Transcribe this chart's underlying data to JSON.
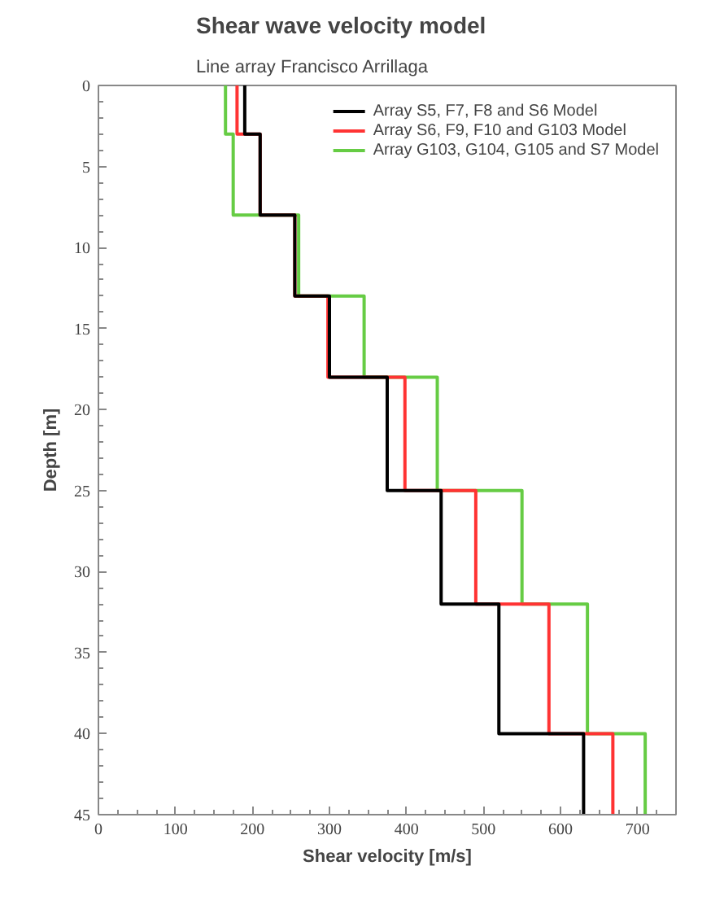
{
  "chart_data": {
    "type": "line",
    "title": "Shear wave velocity model",
    "subtitle": "Line array Francisco Arrillaga",
    "xlabel": "Shear velocity [m/s]",
    "ylabel": "Depth [m]",
    "xlim": [
      0,
      750
    ],
    "xticks": [
      0,
      100,
      200,
      300,
      400,
      500,
      600,
      700
    ],
    "ylim": [
      45,
      0
    ],
    "yticks": [
      0,
      5,
      10,
      15,
      20,
      25,
      30,
      35,
      40,
      45
    ],
    "legend": "top right",
    "grid": false,
    "line_style": "solid",
    "marker": "none",
    "series": [
      {
        "name": "Array S5, F7, F8 and S6 Model",
        "color": "#000000",
        "x": [
          190,
          190,
          210,
          210,
          255,
          255,
          300,
          300,
          375,
          375,
          445,
          445,
          520,
          520,
          630,
          630
        ],
        "values": [
          0,
          3,
          3,
          8,
          8,
          13,
          13,
          18,
          18,
          25,
          25,
          32,
          32,
          40,
          40,
          45
        ]
      },
      {
        "name": "Array S6, F9, F10 and G103 Model",
        "color": "#ff3333",
        "x": [
          180,
          180,
          210,
          210,
          255,
          255,
          298,
          298,
          398,
          398,
          490,
          490,
          585,
          585,
          668,
          668
        ],
        "values": [
          0,
          3,
          3,
          8,
          8,
          13,
          13,
          18,
          18,
          25,
          25,
          32,
          32,
          40,
          40,
          45
        ]
      },
      {
        "name": "Array G103, G104, G105 and S7 Model",
        "color": "#66cc44",
        "x": [
          165,
          165,
          175,
          175,
          260,
          260,
          345,
          345,
          440,
          440,
          550,
          550,
          635,
          635,
          710,
          710
        ],
        "values": [
          0,
          3,
          3,
          8,
          8,
          13,
          13,
          18,
          18,
          25,
          25,
          32,
          32,
          40,
          40,
          45
        ]
      }
    ]
  }
}
